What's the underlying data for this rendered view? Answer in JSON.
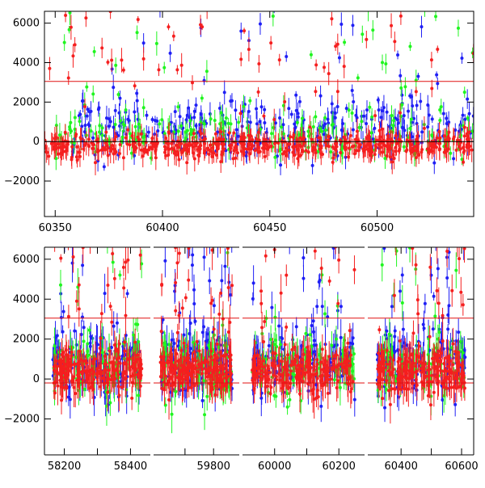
{
  "chart_data": [
    {
      "type": "scatter",
      "title": "",
      "xlabel": "",
      "ylabel": "",
      "xlim": [
        60345,
        60545
      ],
      "ylim": [
        -3800,
        6600
      ],
      "x_ticks": [
        60350,
        60400,
        60450,
        60500
      ],
      "x_tick_labels": [
        "60350",
        "60400",
        "60450",
        "60500"
      ],
      "y_ticks": [
        -2000,
        0,
        2000,
        4000,
        6000
      ],
      "y_tick_labels": [
        "−2000",
        "0",
        "2000",
        "4000",
        "6000"
      ],
      "reference_lines": [
        3050,
        0
      ],
      "grid": false,
      "error_bars": true,
      "series": [
        {
          "color": "#1f1ff5",
          "x_range": [
            60358,
            60545
          ],
          "center": 700,
          "spread": 2200,
          "density": 7
        },
        {
          "color": "#1ff51f",
          "x_range": [
            60350,
            60545
          ],
          "center": 400,
          "spread": 1800,
          "density": 5
        },
        {
          "color": "#f51f1f",
          "x_range": [
            60345,
            60545
          ],
          "center": -200,
          "spread": 900,
          "density": 12
        }
      ]
    },
    {
      "type": "scatter",
      "title": "",
      "xlabel": "",
      "ylabel": "",
      "segments": [
        {
          "xlim": [
            58140,
            58460
          ],
          "x_ticks": [
            58200,
            58300,
            58400
          ],
          "x_tick_labels": [
            "58200",
            "",
            "58400"
          ]
        },
        {
          "xlim": [
            59590,
            59890
          ],
          "x_ticks": [
            59700,
            59800
          ],
          "x_tick_labels": [
            "",
            "59800"
          ]
        },
        {
          "xlim": [
            59900,
            60280
          ],
          "x_ticks": [
            60000,
            60100,
            60200
          ],
          "x_tick_labels": [
            "60000",
            "",
            "60200"
          ]
        },
        {
          "xlim": [
            60290,
            60640
          ],
          "x_ticks": [
            60400,
            60500,
            60600
          ],
          "x_tick_labels": [
            "60400",
            "",
            "60600"
          ]
        }
      ],
      "ylim": [
        -3800,
        6600
      ],
      "y_ticks": [
        -2000,
        0,
        2000,
        4000,
        6000
      ],
      "y_tick_labels": [
        "−2000",
        "0",
        "2000",
        "4000",
        "6000"
      ],
      "reference_lines": [
        3050,
        -200
      ],
      "grid": false,
      "error_bars": true,
      "series": [
        {
          "color": "#1f1ff5",
          "center": 900,
          "spread": 2400,
          "density": 9
        },
        {
          "color": "#1ff51f",
          "center": 700,
          "spread": 2200,
          "density": 6
        },
        {
          "color": "#f51f1f",
          "center": 400,
          "spread": 1500,
          "density": 14
        }
      ]
    }
  ]
}
